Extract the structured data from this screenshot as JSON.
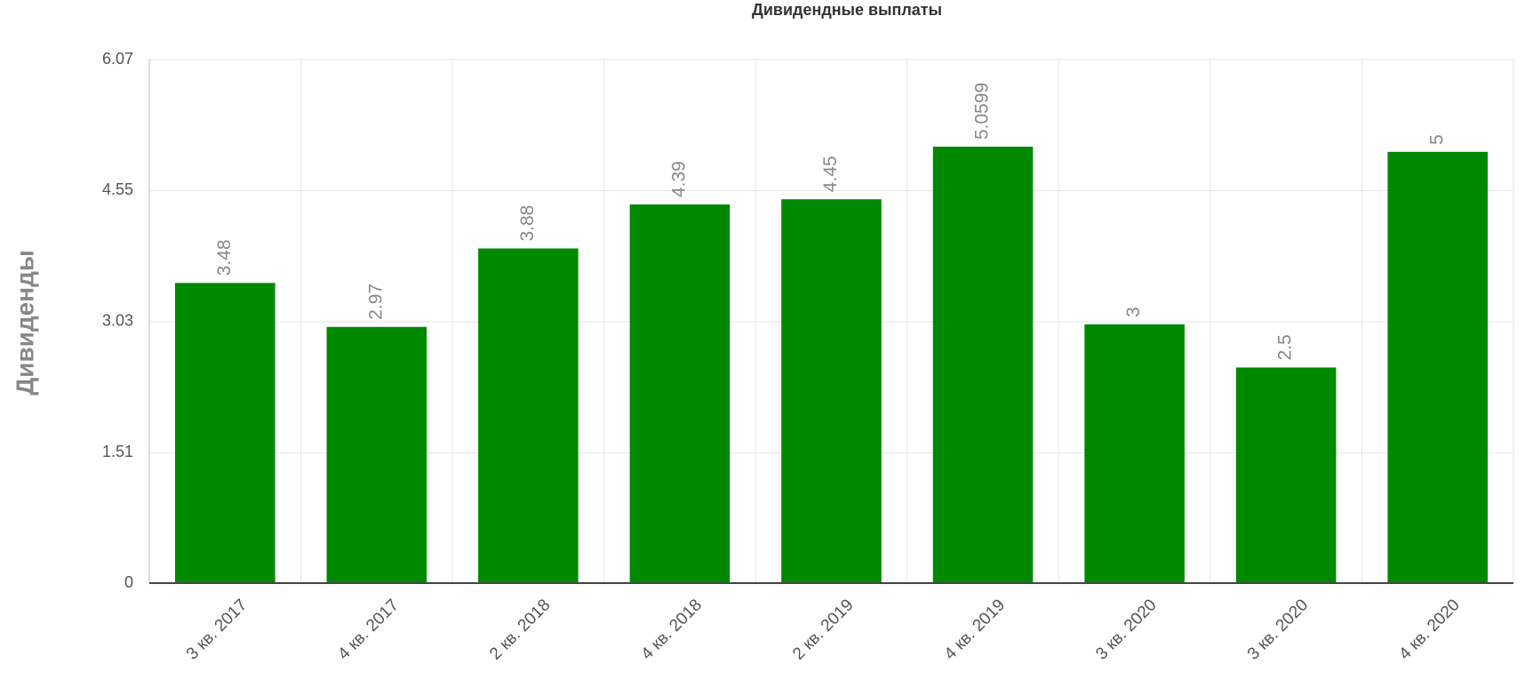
{
  "chart_data": {
    "type": "bar",
    "title": "Дивидендные выплаты",
    "y_label": "Дивиденды",
    "categories": [
      "3 кв. 2017",
      "4 кв. 2017",
      "2 кв. 2018",
      "4 кв. 2018",
      "2 кв. 2019",
      "4 кв. 2019",
      "3 кв. 2020",
      "3 кв. 2020",
      "4 кв. 2020"
    ],
    "values": [
      3.48,
      2.97,
      3.88,
      4.39,
      4.45,
      5.0599,
      3,
      2.5,
      5
    ],
    "color": "#008800",
    "ylim": [
      0,
      6.07
    ],
    "yticks": [
      0,
      1.51,
      3.03,
      4.55,
      6.07
    ],
    "grid": true
  }
}
